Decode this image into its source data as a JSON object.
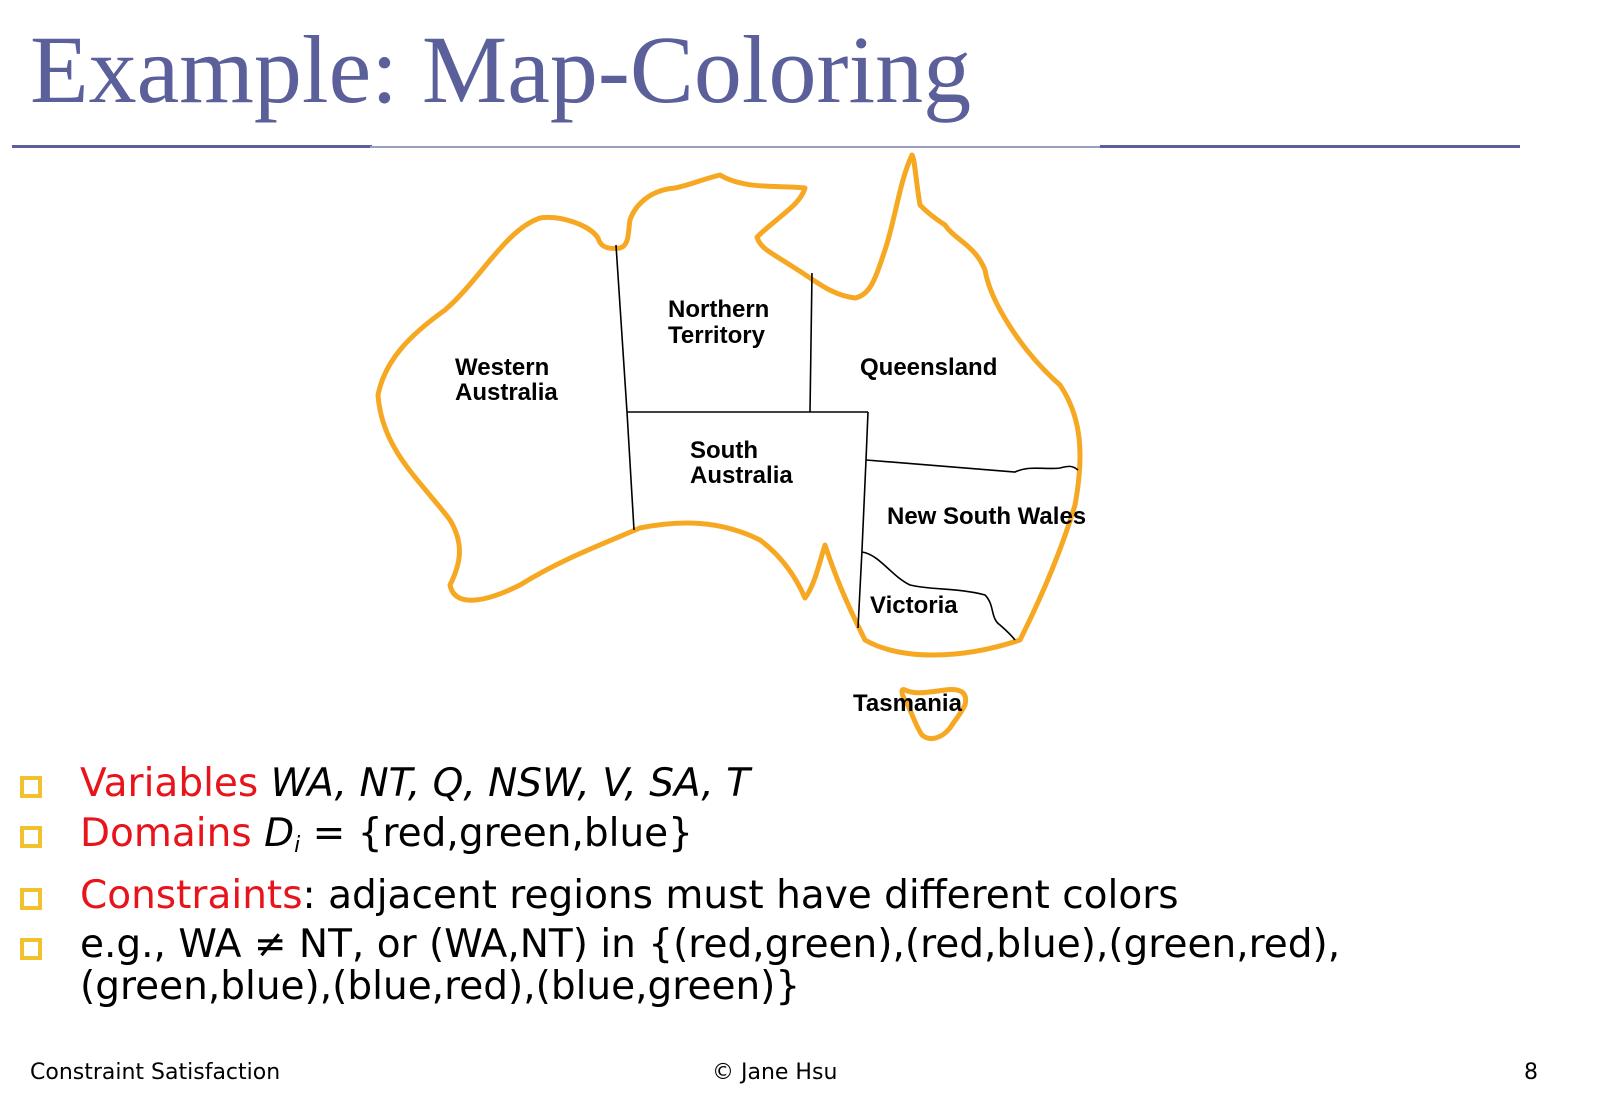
{
  "title": "Example: Map-Coloring",
  "map": {
    "outline_color": "#f7a823",
    "labels": {
      "wa_line1": "Western",
      "wa_line2": "Australia",
      "nt_line1": "Northern",
      "nt_line2": "Territory",
      "q": "Queensland",
      "sa_line1": "South",
      "sa_line2": "Australia",
      "nsw": "New South Wales",
      "v": "Victoria",
      "t": "Tasmania"
    }
  },
  "bullets": {
    "marker_color": "#f2c12e",
    "keyword_color": "#e8141c",
    "variables": {
      "keyword": "Variables",
      "list": "WA, NT, Q, NSW, V, SA, T"
    },
    "domains": {
      "keyword": "Domains",
      "symbol": "D",
      "subscript": "i",
      "rest": " = {red,green,blue}"
    },
    "constraints": {
      "keyword": "Constraints",
      "rest": ": adjacent regions must have different colors"
    },
    "example": {
      "line1": "e.g., WA ≠ NT, or (WA,NT) in {(red,green),(red,blue),(green,red),",
      "line2": "(green,blue),(blue,red),(blue,green)}"
    }
  },
  "footer": {
    "left": "Constraint Satisfaction",
    "center": "© Jane Hsu",
    "page": "8"
  }
}
